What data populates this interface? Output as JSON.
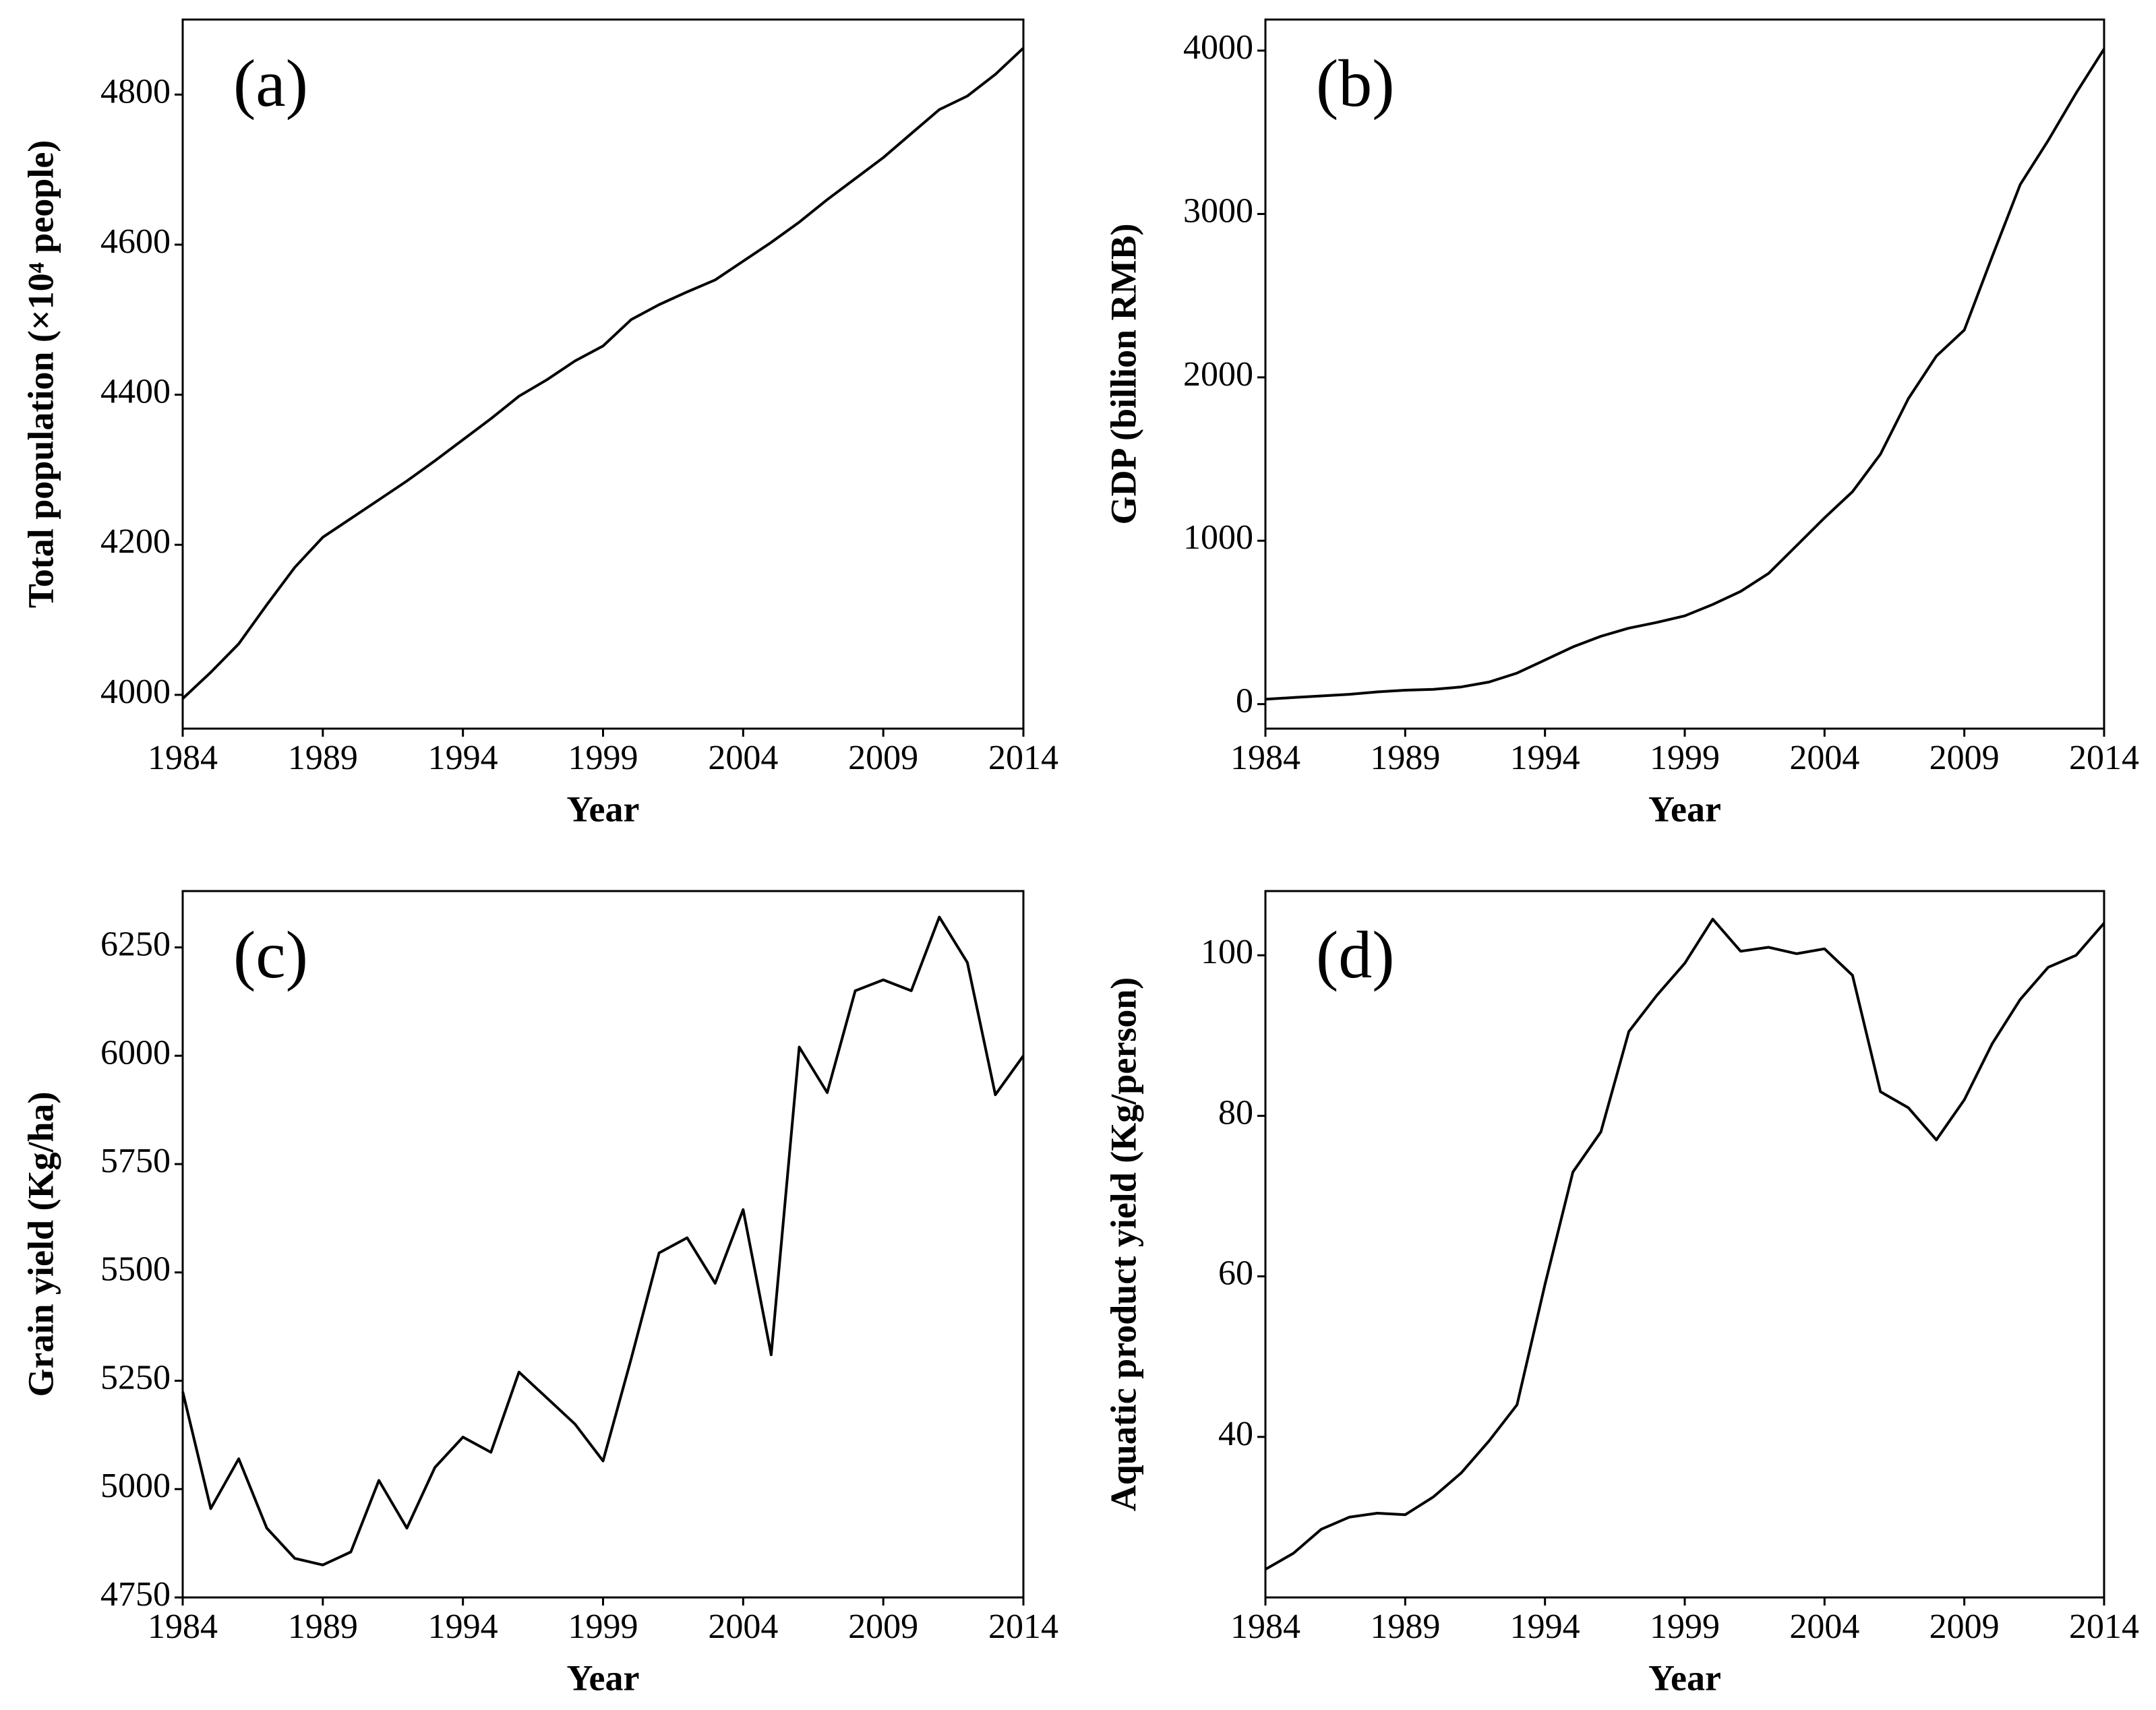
{
  "chart_data": [
    {
      "type": "line",
      "annotation": "(a)",
      "xlabel": "Year",
      "ylabel": "Total population (×10⁴ people)",
      "x": [
        1984,
        1985,
        1986,
        1987,
        1988,
        1989,
        1990,
        1991,
        1992,
        1993,
        1994,
        1995,
        1996,
        1997,
        1998,
        1999,
        2000,
        2001,
        2002,
        2003,
        2004,
        2005,
        2006,
        2007,
        2008,
        2009,
        2010,
        2011,
        2012,
        2013,
        2014
      ],
      "values": [
        3995,
        4030,
        4068,
        4120,
        4170,
        4210,
        4235,
        4260,
        4285,
        4312,
        4340,
        4368,
        4398,
        4420,
        4445,
        4465,
        4500,
        4520,
        4537,
        4553,
        4578,
        4603,
        4630,
        4660,
        4688,
        4716,
        4748,
        4780,
        4798,
        4827,
        4862
      ],
      "color": "#000000",
      "xlim": [
        1984,
        2014
      ],
      "xticks": [
        1984,
        1989,
        1994,
        1999,
        2004,
        2009,
        2014
      ],
      "ylim": [
        3955,
        4900
      ],
      "yticks": [
        4000,
        4200,
        4400,
        4600,
        4800
      ]
    },
    {
      "type": "line",
      "annotation": "(b)",
      "xlabel": "Year",
      "ylabel": "GDP (billion RMB)",
      "x": [
        1984,
        1985,
        1986,
        1987,
        1988,
        1989,
        1990,
        1991,
        1992,
        1993,
        1994,
        1995,
        1996,
        1997,
        1998,
        1999,
        2000,
        2001,
        2002,
        2003,
        2004,
        2005,
        2006,
        2007,
        2008,
        2009,
        2010,
        2011,
        2012,
        2013,
        2014
      ],
      "values": [
        30,
        40,
        50,
        60,
        75,
        85,
        90,
        105,
        135,
        190,
        270,
        350,
        415,
        465,
        500,
        540,
        610,
        690,
        800,
        970,
        1140,
        1300,
        1530,
        1870,
        2130,
        2290,
        2740,
        3180,
        3450,
        3740,
        4010
      ],
      "color": "#000000",
      "xlim": [
        1984,
        2014
      ],
      "xticks": [
        1984,
        1989,
        1994,
        1999,
        2004,
        2009,
        2014
      ],
      "ylim": [
        -150,
        4190
      ],
      "yticks": [
        0,
        1000,
        2000,
        3000,
        4000
      ]
    },
    {
      "type": "line",
      "annotation": "(c)",
      "xlabel": "Year",
      "ylabel": "Grain yield (Kg/ha)",
      "x": [
        1984,
        1985,
        1986,
        1987,
        1988,
        1989,
        1990,
        1991,
        1992,
        1993,
        1994,
        1995,
        1996,
        1997,
        1998,
        1999,
        2000,
        2001,
        2002,
        2003,
        2004,
        2005,
        2006,
        2007,
        2008,
        2009,
        2010,
        2011,
        2012,
        2013,
        2014
      ],
      "values": [
        5225,
        4955,
        5070,
        4910,
        4840,
        4825,
        4855,
        5020,
        4910,
        5050,
        5120,
        5085,
        5270,
        5210,
        5150,
        5065,
        5300,
        5545,
        5580,
        5475,
        5645,
        5310,
        6020,
        5915,
        6150,
        6175,
        6150,
        6320,
        6215,
        5910,
        6000
      ],
      "color": "#000000",
      "xlim": [
        1984,
        2014
      ],
      "xticks": [
        1984,
        1989,
        1994,
        1999,
        2004,
        2009,
        2014
      ],
      "ylim": [
        4750,
        6380
      ],
      "yticks": [
        4750,
        5000,
        5250,
        5500,
        5750,
        6000,
        6250
      ]
    },
    {
      "type": "line",
      "annotation": "(d)",
      "xlabel": "Year",
      "ylabel": "Aquatic product yield (Kg/person)",
      "x": [
        1984,
        1985,
        1986,
        1987,
        1988,
        1989,
        1990,
        1991,
        1992,
        1993,
        1994,
        1995,
        1996,
        1997,
        1998,
        1999,
        2000,
        2001,
        2002,
        2003,
        2004,
        2005,
        2006,
        2007,
        2008,
        2009,
        2010,
        2011,
        2012,
        2013,
        2014
      ],
      "values": [
        23.5,
        25.5,
        28.5,
        30,
        30.5,
        30.3,
        32.5,
        35.5,
        39.5,
        44,
        59,
        73,
        78,
        90.5,
        95,
        99,
        104.5,
        100.5,
        101,
        100.2,
        100.8,
        97.5,
        83,
        81,
        77,
        82,
        89,
        94.5,
        98.5,
        100,
        104
      ],
      "color": "#000000",
      "xlim": [
        1984,
        2014
      ],
      "xticks": [
        1984,
        1989,
        1994,
        1999,
        2004,
        2009,
        2014
      ],
      "ylim": [
        20,
        108
      ],
      "yticks": [
        40,
        60,
        80,
        100
      ]
    }
  ]
}
